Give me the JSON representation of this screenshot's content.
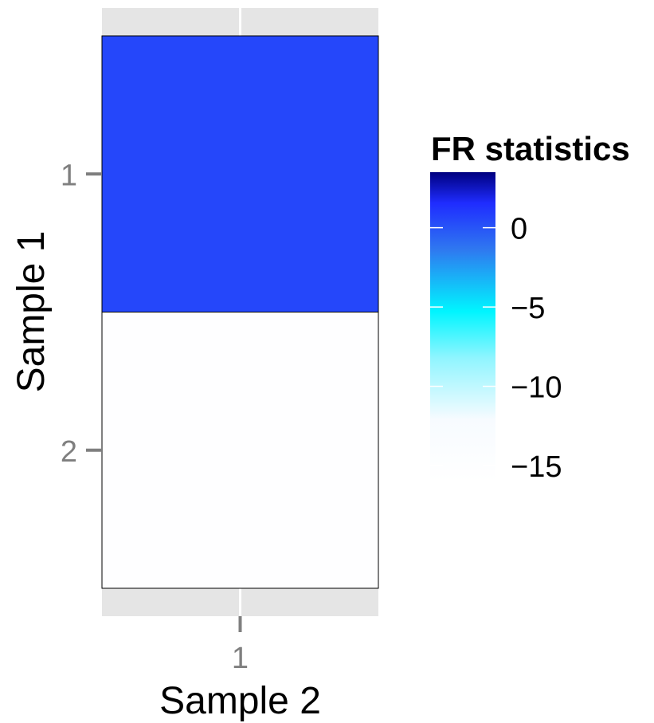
{
  "chart_data": {
    "type": "heatmap",
    "x_categories": [
      "1"
    ],
    "y_categories": [
      "1",
      "2"
    ],
    "cells": [
      {
        "x": "1",
        "y": "1",
        "value": 0.5
      },
      {
        "x": "1",
        "y": "2",
        "value": -15.5
      }
    ],
    "xlabel": "Sample 2",
    "ylabel": "Sample 1",
    "legend": {
      "title": "FR statistics",
      "position": "right",
      "range": [
        -16,
        3.5
      ],
      "breaks": [
        0,
        -5,
        -10,
        -15
      ],
      "labels": [
        "0",
        "−5",
        "−10",
        "−15"
      ],
      "colors": [
        "#f7fbff",
        "#00f5ff",
        "#1f2cff",
        "#00007f"
      ]
    },
    "panel_background": "#e5e5e5",
    "grid": true
  }
}
